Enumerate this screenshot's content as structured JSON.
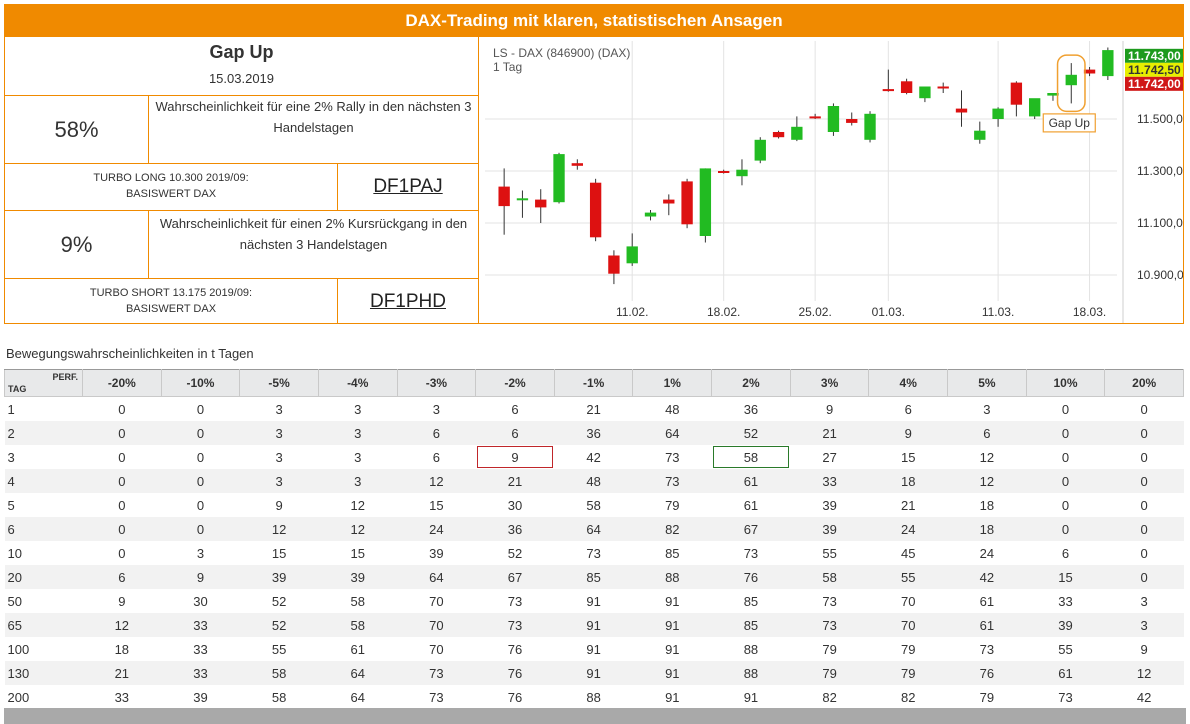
{
  "header": {
    "title": "DAX-Trading mit klaren, statistischen Ansagen"
  },
  "signal": {
    "name": "Gap Up",
    "date": "15.03.2019",
    "long": {
      "probability": "58%",
      "text": "Wahrscheinlichkeit für eine 2% Rally in den nächsten 3 Handelstagen",
      "product": "TURBO LONG 10.300 2019/09:",
      "underlying": "BASISWERT DAX",
      "code": "DF1PAJ"
    },
    "short": {
      "probability": "9%",
      "text": "Wahrscheinlichkeit für einen 2% Kursrückgang in den nächsten 3 Handelstagen",
      "product": "TURBO SHORT 13.175 2019/09:",
      "underlying": "BASISWERT DAX",
      "code": "DF1PHD"
    }
  },
  "chart_data": {
    "type": "candlestick",
    "title": "LS - DAX (846900) (DAX)",
    "subtitle": "1 Tag",
    "ylim": [
      10800,
      11800
    ],
    "yticks": [
      10900,
      11100,
      11300,
      11500
    ],
    "ytick_labels": [
      "10.900,0",
      "11.100,0",
      "11.300,0",
      "11.500,0"
    ],
    "xtick_labels": [
      {
        "index": 7,
        "label": "11.02."
      },
      {
        "index": 12,
        "label": "18.02."
      },
      {
        "index": 17,
        "label": "25.02."
      },
      {
        "index": 21,
        "label": "01.03."
      },
      {
        "index": 27,
        "label": "11.03."
      },
      {
        "index": 32,
        "label": "18.03."
      }
    ],
    "candles": [
      {
        "o": 11240,
        "h": 11310,
        "l": 11055,
        "c": 11165
      },
      {
        "o": 11195,
        "h": 11225,
        "l": 11120,
        "c": 11195
      },
      {
        "o": 11190,
        "h": 11230,
        "l": 11100,
        "c": 11160
      },
      {
        "o": 11180,
        "h": 11370,
        "l": 11175,
        "c": 11365
      },
      {
        "o": 11330,
        "h": 11345,
        "l": 11305,
        "c": 11320
      },
      {
        "o": 11255,
        "h": 11270,
        "l": 11030,
        "c": 11045
      },
      {
        "o": 10975,
        "h": 10995,
        "l": 10865,
        "c": 10905
      },
      {
        "o": 10945,
        "h": 11060,
        "l": 10935,
        "c": 11010
      },
      {
        "o": 11125,
        "h": 11150,
        "l": 11110,
        "c": 11140
      },
      {
        "o": 11190,
        "h": 11210,
        "l": 11130,
        "c": 11175
      },
      {
        "o": 11260,
        "h": 11270,
        "l": 11080,
        "c": 11095
      },
      {
        "o": 11050,
        "h": 11310,
        "l": 11025,
        "c": 11310
      },
      {
        "o": 11300,
        "h": 11305,
        "l": 11290,
        "c": 11295
      },
      {
        "o": 11280,
        "h": 11345,
        "l": 11245,
        "c": 11305
      },
      {
        "o": 11340,
        "h": 11430,
        "l": 11330,
        "c": 11420
      },
      {
        "o": 11450,
        "h": 11455,
        "l": 11425,
        "c": 11430
      },
      {
        "o": 11420,
        "h": 11510,
        "l": 11415,
        "c": 11470
      },
      {
        "o": 11510,
        "h": 11520,
        "l": 11500,
        "c": 11505
      },
      {
        "o": 11450,
        "h": 11560,
        "l": 11435,
        "c": 11550
      },
      {
        "o": 11500,
        "h": 11525,
        "l": 11475,
        "c": 11485
      },
      {
        "o": 11420,
        "h": 11530,
        "l": 11410,
        "c": 11520
      },
      {
        "o": 11615,
        "h": 11690,
        "l": 11605,
        "c": 11610
      },
      {
        "o": 11645,
        "h": 11655,
        "l": 11595,
        "c": 11600
      },
      {
        "o": 11580,
        "h": 11625,
        "l": 11565,
        "c": 11625
      },
      {
        "o": 11625,
        "h": 11640,
        "l": 11600,
        "c": 11620
      },
      {
        "o": 11540,
        "h": 11610,
        "l": 11470,
        "c": 11525
      },
      {
        "o": 11420,
        "h": 11490,
        "l": 11405,
        "c": 11455
      },
      {
        "o": 11500,
        "h": 11545,
        "l": 11470,
        "c": 11540
      },
      {
        "o": 11640,
        "h": 11645,
        "l": 11510,
        "c": 11555
      },
      {
        "o": 11510,
        "h": 11575,
        "l": 11500,
        "c": 11580
      },
      {
        "o": 11590,
        "h": 11600,
        "l": 11570,
        "c": 11600
      },
      {
        "o": 11630,
        "h": 11715,
        "l": 11560,
        "c": 11670
      },
      {
        "o": 11690,
        "h": 11700,
        "l": 11665,
        "c": 11675
      },
      {
        "o": 11665,
        "h": 11775,
        "l": 11650,
        "c": 11765
      }
    ],
    "price_labels": [
      {
        "label": "11.743,00",
        "value": 11743,
        "color": "#1d9a1d"
      },
      {
        "label": "11.742,50",
        "value": 11742.5,
        "color": "#e8ef00"
      },
      {
        "label": "11.742,00",
        "value": 11742,
        "color": "#d01818"
      }
    ],
    "annotation": {
      "label": "Gap Up",
      "index": 31
    },
    "colors": {
      "up": "#22bb22",
      "down": "#dd1111",
      "highlight": "#f0a030"
    },
    "grid": true
  },
  "table": {
    "title": "Bewegungswahrscheinlichkeiten in t Tagen",
    "corner_perf": "PERF.",
    "corner_tag": "TAG",
    "columns": [
      "-20%",
      "-10%",
      "-5%",
      "-4%",
      "-3%",
      "-2%",
      "-1%",
      "1%",
      "2%",
      "3%",
      "4%",
      "5%",
      "10%",
      "20%"
    ],
    "rows": [
      {
        "day": "1",
        "values": [
          "0",
          "0",
          "3",
          "3",
          "3",
          "6",
          "21",
          "48",
          "36",
          "9",
          "6",
          "3",
          "0",
          "0"
        ]
      },
      {
        "day": "2",
        "values": [
          "0",
          "0",
          "3",
          "3",
          "6",
          "6",
          "36",
          "64",
          "52",
          "21",
          "9",
          "6",
          "0",
          "0"
        ]
      },
      {
        "day": "3",
        "values": [
          "0",
          "0",
          "3",
          "3",
          "6",
          "9",
          "42",
          "73",
          "58",
          "27",
          "15",
          "12",
          "0",
          "0"
        ]
      },
      {
        "day": "4",
        "values": [
          "0",
          "0",
          "3",
          "3",
          "12",
          "21",
          "48",
          "73",
          "61",
          "33",
          "18",
          "12",
          "0",
          "0"
        ]
      },
      {
        "day": "5",
        "values": [
          "0",
          "0",
          "9",
          "12",
          "15",
          "30",
          "58",
          "79",
          "61",
          "39",
          "21",
          "18",
          "0",
          "0"
        ]
      },
      {
        "day": "6",
        "values": [
          "0",
          "0",
          "12",
          "12",
          "24",
          "36",
          "64",
          "82",
          "67",
          "39",
          "24",
          "18",
          "0",
          "0"
        ]
      },
      {
        "day": "10",
        "values": [
          "0",
          "3",
          "15",
          "15",
          "39",
          "52",
          "73",
          "85",
          "73",
          "55",
          "45",
          "24",
          "6",
          "0"
        ]
      },
      {
        "day": "20",
        "values": [
          "6",
          "9",
          "39",
          "39",
          "64",
          "67",
          "85",
          "88",
          "76",
          "58",
          "55",
          "42",
          "15",
          "0"
        ]
      },
      {
        "day": "50",
        "values": [
          "9",
          "30",
          "52",
          "58",
          "70",
          "73",
          "91",
          "91",
          "85",
          "73",
          "70",
          "61",
          "33",
          "3"
        ]
      },
      {
        "day": "65",
        "values": [
          "12",
          "33",
          "52",
          "58",
          "70",
          "73",
          "91",
          "91",
          "85",
          "73",
          "70",
          "61",
          "39",
          "3"
        ]
      },
      {
        "day": "100",
        "values": [
          "18",
          "33",
          "55",
          "61",
          "70",
          "76",
          "91",
          "91",
          "88",
          "79",
          "79",
          "73",
          "55",
          "9"
        ]
      },
      {
        "day": "130",
        "values": [
          "21",
          "33",
          "58",
          "64",
          "73",
          "76",
          "91",
          "91",
          "88",
          "79",
          "79",
          "76",
          "61",
          "12"
        ]
      },
      {
        "day": "200",
        "values": [
          "33",
          "39",
          "58",
          "64",
          "73",
          "76",
          "88",
          "91",
          "91",
          "82",
          "82",
          "79",
          "73",
          "42"
        ]
      }
    ],
    "highlights": [
      {
        "row": 2,
        "col": 5,
        "color": "red"
      },
      {
        "row": 2,
        "col": 8,
        "color": "green"
      }
    ]
  }
}
